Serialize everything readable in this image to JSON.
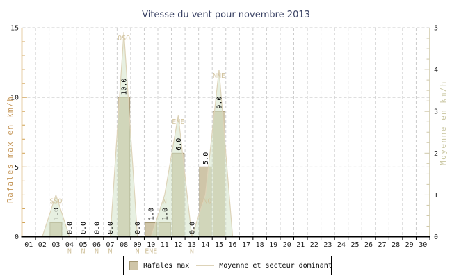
{
  "legend": {
    "items": [
      {
        "label": "Rafales max",
        "swatch": "bar"
      },
      {
        "label": "Moyenne et secteur dominant",
        "swatch": "line"
      }
    ]
  },
  "colors": {
    "title_text": "#3a4264",
    "left_axis_line": "#d0a050",
    "left_axis_text": "#c49556",
    "right_axis_line": "#cfc8a8",
    "right_axis_text": "#c9c6a0",
    "x_axis_line": "#000000",
    "tick_label_text": "#1a1a1a",
    "grid": "#cccccc",
    "bar_fill": "#cfc5a8",
    "bar_border": "#a39672",
    "area_fill": "rgba(211,227,201,0.55)",
    "area_line": "#ddd3b8",
    "direction_text": "#d2c4a0",
    "value_label_text": "#000000",
    "legend_border": "#000000"
  },
  "chart_data": {
    "type": "bar+area",
    "title": "Vitesse du vent pour novembre 2013",
    "x_labels": [
      "01",
      "02",
      "03",
      "04",
      "05",
      "06",
      "07",
      "08",
      "09",
      "10",
      "11",
      "12",
      "13",
      "14",
      "15",
      "16",
      "17",
      "18",
      "19",
      "20",
      "21",
      "22",
      "23",
      "24",
      "25",
      "26",
      "27",
      "28",
      "29",
      "30"
    ],
    "y_left": {
      "label": "Rafales max en km/h",
      "range": [
        0,
        15
      ],
      "major_ticks": [
        0,
        5,
        10,
        15
      ],
      "minor_step": 1
    },
    "y_right": {
      "label": "Moyenne en km/h",
      "range": [
        0,
        5
      ],
      "major_ticks": [
        0,
        1,
        2,
        3,
        4,
        5
      ],
      "minor_step": 0.25
    },
    "grid_major_left_values": [
      5,
      10,
      15
    ],
    "series": [
      {
        "name": "Rafales max",
        "type": "bar",
        "axis": "left",
        "unit": "km/h",
        "bars": [
          {
            "day": 3,
            "value": 1.0,
            "label": "1.0"
          },
          {
            "day": 4,
            "value": 0.0,
            "label": "0.0"
          },
          {
            "day": 5,
            "value": 0.0,
            "label": "0.0"
          },
          {
            "day": 6,
            "value": 0.0,
            "label": "0.0"
          },
          {
            "day": 7,
            "value": 0.0,
            "label": "0.0"
          },
          {
            "day": 8,
            "value": 10.0,
            "label": "10.0"
          },
          {
            "day": 9,
            "value": 0.0,
            "label": "0.0"
          },
          {
            "day": 10,
            "value": 1.0,
            "label": "1.0"
          },
          {
            "day": 11,
            "value": 1.0,
            "label": "1.0"
          },
          {
            "day": 12,
            "value": 6.0,
            "label": "6.0"
          },
          {
            "day": 13,
            "value": 0.0,
            "label": "0.0"
          },
          {
            "day": 14,
            "value": 5.0,
            "label": "5.0"
          },
          {
            "day": 15,
            "value": 9.0,
            "label": "9.0"
          }
        ]
      },
      {
        "name": "Moyenne et secteur dominant",
        "type": "area",
        "axis": "right",
        "unit": "km/h",
        "values_by_day": [
          0,
          0,
          1.0,
          0,
          0,
          0,
          0,
          4.9,
          0,
          0,
          1.0,
          2.9,
          0,
          1.0,
          4.0,
          0,
          0,
          0,
          0,
          0,
          0,
          0,
          0,
          0,
          0,
          0,
          0,
          0,
          0,
          0
        ]
      }
    ],
    "directions": [
      {
        "day": 3,
        "text": "SSO",
        "pos": "above"
      },
      {
        "day": 4,
        "text": "N",
        "pos": "below"
      },
      {
        "day": 5,
        "text": "N",
        "pos": "below"
      },
      {
        "day": 6,
        "text": "N",
        "pos": "below"
      },
      {
        "day": 7,
        "text": "N",
        "pos": "below"
      },
      {
        "day": 8,
        "text": "OSO",
        "pos": "above"
      },
      {
        "day": 9,
        "text": "N",
        "pos": "below"
      },
      {
        "day": 10,
        "text": "ENE",
        "pos": "below"
      },
      {
        "day": 11,
        "text": "N",
        "pos": "above"
      },
      {
        "day": 12,
        "text": "ENE",
        "pos": "above"
      },
      {
        "day": 13,
        "text": "N",
        "pos": "below"
      },
      {
        "day": 14,
        "text": "ONO",
        "pos": "above"
      },
      {
        "day": 15,
        "text": "NNE",
        "pos": "above"
      }
    ]
  }
}
